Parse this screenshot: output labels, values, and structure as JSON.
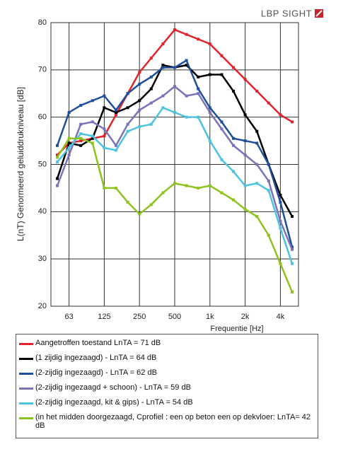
{
  "logo": "LBP SIGHT",
  "chart_data": {
    "type": "line",
    "y_label": "L(nT) Genormeerd geluiddrukniveau [dB]",
    "x_label": "Frequentie [Hz]",
    "categories": [
      null,
      "63",
      null,
      null,
      "125",
      null,
      null,
      "250",
      null,
      null,
      "500",
      null,
      null,
      "1k",
      null,
      null,
      "2k",
      null,
      null,
      "4k",
      null
    ],
    "ylim": [
      20,
      80
    ],
    "yticks": [
      20,
      30,
      40,
      50,
      60,
      70,
      80
    ],
    "grid": true,
    "series": [
      {
        "name": "Aangetroffen toestand  LnTA = 71 dB",
        "color": "#e3232c",
        "values": [
          52,
          54.5,
          55,
          55.5,
          56,
          60.5,
          65,
          69.5,
          72.5,
          75.5,
          78.5,
          77.5,
          76.5,
          75.5,
          73,
          70.5,
          68,
          65.5,
          63,
          60.5,
          59
        ]
      },
      {
        "name": "(1 zijdig ingezaagd) -   LnTA  = 64 dB",
        "color": "#000000",
        "values": [
          47,
          54.5,
          54,
          55.5,
          62,
          61,
          62,
          63.5,
          66,
          71,
          70.5,
          71,
          68.5,
          69,
          69,
          65.5,
          60.5,
          57,
          50,
          43.5,
          39
        ]
      },
      {
        "name": "(2-zijdig ingezaagd) -   LnTA  = 62 dB",
        "color": "#1f4e9c",
        "values": [
          54,
          61,
          62.5,
          63.5,
          64.5,
          61.5,
          65,
          67,
          68.5,
          70.5,
          70.5,
          72,
          66,
          62,
          59,
          55.5,
          55,
          54.5,
          50,
          42,
          32.5
        ]
      },
      {
        "name": "(2-zijdig ingezaagd + schoon) -   LnTA  = 59 dB",
        "color": "#7b72b8",
        "values": [
          45.5,
          52,
          58.5,
          59,
          57.5,
          54,
          58.5,
          61.5,
          63,
          64.5,
          66.5,
          64.5,
          65,
          61,
          57.5,
          54,
          52,
          50,
          46.5,
          38,
          32
        ]
      },
      {
        "name": "(2-zijdig ingezaagd, kit & gips) -   LnTA  = 54 dB",
        "color": "#4ec3e0",
        "values": [
          50.5,
          53.5,
          56.5,
          56,
          53.5,
          53,
          57,
          58,
          58.5,
          62,
          61,
          60,
          60,
          55,
          51,
          48.5,
          45.5,
          46,
          44.5,
          36.5,
          29
        ]
      },
      {
        "name": "(in het midden doorgezaagd, Cprofiel : een op beton een op dekvloer: LnTA= 42 dB",
        "color": "#8cc31e",
        "values": [
          51.5,
          55.5,
          55.5,
          54.5,
          45,
          45,
          42,
          39.5,
          41.5,
          44,
          46,
          45.5,
          45,
          45.5,
          44,
          42.5,
          40.5,
          39,
          35,
          29,
          23
        ]
      }
    ]
  }
}
